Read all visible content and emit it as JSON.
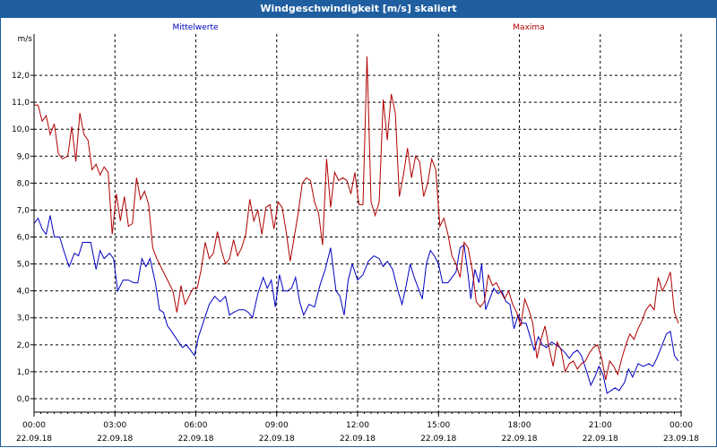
{
  "window": {
    "title": "Windgeschwindigkeit [m/s] skaliert"
  },
  "chart_data": {
    "type": "line",
    "title": "Windgeschwindigkeit [m/s] skaliert",
    "ylabel": "m/s",
    "xlabel": "",
    "ylim": [
      -0.5,
      13.2
    ],
    "xlim": [
      0,
      24
    ],
    "grid": true,
    "legend": "top",
    "yticks": [
      "0,0",
      "1,0",
      "2,0",
      "3,0",
      "4,0",
      "5,0",
      "6,0",
      "7,0",
      "8,0",
      "9,0",
      "10,0",
      "11,0",
      "12,0"
    ],
    "xticks": [
      {
        "time": "00:00",
        "date": "22.09.18"
      },
      {
        "time": "03:00",
        "date": "22.09.18"
      },
      {
        "time": "06:00",
        "date": "22.09.18"
      },
      {
        "time": "09:00",
        "date": "22.09.18"
      },
      {
        "time": "12:00",
        "date": "22.09.18"
      },
      {
        "time": "15:00",
        "date": "22.09.18"
      },
      {
        "time": "18:00",
        "date": "22.09.18"
      },
      {
        "time": "21:00",
        "date": "22.09.18"
      },
      {
        "time": "00:00",
        "date": "23.09.18"
      }
    ],
    "series": [
      {
        "name": "Mittelwerte",
        "color": "#0000c0",
        "points": [
          [
            0.0,
            6.5
          ],
          [
            0.15,
            6.7
          ],
          [
            0.3,
            6.3
          ],
          [
            0.45,
            6.1
          ],
          [
            0.6,
            6.8
          ],
          [
            0.75,
            6.0
          ],
          [
            0.95,
            6.0
          ],
          [
            1.1,
            5.5
          ],
          [
            1.3,
            4.9
          ],
          [
            1.5,
            5.4
          ],
          [
            1.65,
            5.3
          ],
          [
            1.8,
            5.8
          ],
          [
            2.1,
            5.8
          ],
          [
            2.3,
            4.8
          ],
          [
            2.45,
            5.5
          ],
          [
            2.6,
            5.2
          ],
          [
            2.8,
            5.4
          ],
          [
            2.95,
            5.2
          ],
          [
            3.1,
            4.0
          ],
          [
            3.3,
            4.4
          ],
          [
            3.5,
            4.4
          ],
          [
            3.7,
            4.3
          ],
          [
            3.85,
            4.3
          ],
          [
            4.0,
            5.2
          ],
          [
            4.15,
            4.9
          ],
          [
            4.3,
            5.2
          ],
          [
            4.5,
            4.3
          ],
          [
            4.65,
            3.3
          ],
          [
            4.8,
            3.2
          ],
          [
            4.95,
            2.7
          ],
          [
            5.1,
            2.5
          ],
          [
            5.3,
            2.2
          ],
          [
            5.5,
            1.9
          ],
          [
            5.65,
            2.0
          ],
          [
            5.8,
            1.8
          ],
          [
            5.95,
            1.6
          ],
          [
            6.1,
            2.3
          ],
          [
            6.3,
            2.9
          ],
          [
            6.5,
            3.5
          ],
          [
            6.7,
            3.8
          ],
          [
            6.9,
            3.6
          ],
          [
            7.1,
            3.8
          ],
          [
            7.25,
            3.1
          ],
          [
            7.4,
            3.2
          ],
          [
            7.6,
            3.3
          ],
          [
            7.8,
            3.3
          ],
          [
            7.95,
            3.2
          ],
          [
            8.1,
            3.0
          ],
          [
            8.3,
            3.9
          ],
          [
            8.5,
            4.5
          ],
          [
            8.65,
            4.1
          ],
          [
            8.8,
            4.4
          ],
          [
            8.95,
            3.4
          ],
          [
            9.1,
            4.6
          ],
          [
            9.25,
            4.0
          ],
          [
            9.4,
            4.0
          ],
          [
            9.55,
            4.1
          ],
          [
            9.7,
            4.5
          ],
          [
            9.85,
            3.6
          ],
          [
            10.0,
            3.1
          ],
          [
            10.2,
            3.5
          ],
          [
            10.4,
            3.4
          ],
          [
            10.6,
            4.2
          ],
          [
            10.8,
            4.8
          ],
          [
            11.0,
            5.6
          ],
          [
            11.2,
            4.0
          ],
          [
            11.35,
            3.8
          ],
          [
            11.5,
            3.1
          ],
          [
            11.65,
            4.4
          ],
          [
            11.8,
            5.0
          ],
          [
            12.0,
            4.4
          ],
          [
            12.2,
            4.6
          ],
          [
            12.4,
            5.1
          ],
          [
            12.6,
            5.3
          ],
          [
            12.8,
            5.2
          ],
          [
            12.95,
            4.9
          ],
          [
            13.1,
            5.1
          ],
          [
            13.3,
            4.8
          ],
          [
            13.5,
            4.0
          ],
          [
            13.65,
            3.5
          ],
          [
            13.8,
            4.2
          ],
          [
            13.95,
            5.0
          ],
          [
            14.1,
            4.5
          ],
          [
            14.25,
            4.1
          ],
          [
            14.4,
            3.7
          ],
          [
            14.55,
            5.0
          ],
          [
            14.7,
            5.5
          ],
          [
            14.85,
            5.3
          ],
          [
            15.0,
            5.0
          ],
          [
            15.15,
            4.3
          ],
          [
            15.35,
            4.3
          ],
          [
            15.5,
            4.5
          ],
          [
            15.65,
            4.7
          ],
          [
            15.8,
            5.6
          ],
          [
            15.95,
            5.7
          ],
          [
            16.1,
            4.6
          ],
          [
            16.2,
            3.7
          ],
          [
            16.35,
            4.8
          ],
          [
            16.5,
            4.3
          ],
          [
            16.6,
            5.0
          ],
          [
            16.75,
            3.3
          ],
          [
            16.9,
            3.7
          ],
          [
            17.05,
            4.1
          ],
          [
            17.2,
            3.9
          ],
          [
            17.35,
            4.0
          ],
          [
            17.5,
            3.6
          ],
          [
            17.65,
            3.5
          ],
          [
            17.8,
            2.6
          ],
          [
            17.95,
            3.1
          ],
          [
            18.1,
            2.8
          ],
          [
            18.25,
            2.8
          ],
          [
            18.4,
            2.3
          ],
          [
            18.55,
            1.8
          ],
          [
            18.7,
            2.3
          ],
          [
            18.85,
            2.0
          ],
          [
            19.0,
            1.9
          ],
          [
            19.2,
            2.1
          ],
          [
            19.35,
            2.0
          ],
          [
            19.5,
            1.9
          ],
          [
            19.7,
            1.7
          ],
          [
            19.85,
            1.5
          ],
          [
            20.0,
            1.7
          ],
          [
            20.15,
            1.8
          ],
          [
            20.3,
            1.6
          ],
          [
            20.5,
            1.0
          ],
          [
            20.65,
            0.5
          ],
          [
            20.8,
            0.8
          ],
          [
            20.95,
            1.2
          ],
          [
            21.1,
            0.9
          ],
          [
            21.25,
            0.2
          ],
          [
            21.4,
            0.3
          ],
          [
            21.55,
            0.4
          ],
          [
            21.7,
            0.3
          ],
          [
            21.9,
            0.6
          ],
          [
            22.05,
            1.1
          ],
          [
            22.2,
            0.8
          ],
          [
            22.4,
            1.3
          ],
          [
            22.6,
            1.2
          ],
          [
            22.8,
            1.3
          ],
          [
            22.95,
            1.2
          ],
          [
            23.1,
            1.5
          ],
          [
            23.3,
            2.0
          ],
          [
            23.45,
            2.4
          ],
          [
            23.6,
            2.5
          ],
          [
            23.75,
            1.6
          ],
          [
            23.9,
            1.4
          ]
        ]
      },
      {
        "name": "Maxima",
        "color": "#b00000",
        "points": [
          [
            0.0,
            10.9
          ],
          [
            0.15,
            10.9
          ],
          [
            0.3,
            10.3
          ],
          [
            0.45,
            10.5
          ],
          [
            0.6,
            9.8
          ],
          [
            0.75,
            10.2
          ],
          [
            0.9,
            9.1
          ],
          [
            1.05,
            8.9
          ],
          [
            1.25,
            9.0
          ],
          [
            1.4,
            10.1
          ],
          [
            1.55,
            8.8
          ],
          [
            1.7,
            10.6
          ],
          [
            1.85,
            9.8
          ],
          [
            2.0,
            9.6
          ],
          [
            2.15,
            8.5
          ],
          [
            2.3,
            8.7
          ],
          [
            2.45,
            8.3
          ],
          [
            2.6,
            8.6
          ],
          [
            2.75,
            8.4
          ],
          [
            2.9,
            6.1
          ],
          [
            3.05,
            7.6
          ],
          [
            3.2,
            6.6
          ],
          [
            3.35,
            7.5
          ],
          [
            3.5,
            6.4
          ],
          [
            3.65,
            6.5
          ],
          [
            3.8,
            8.2
          ],
          [
            3.95,
            7.4
          ],
          [
            4.1,
            7.7
          ],
          [
            4.25,
            7.2
          ],
          [
            4.4,
            5.6
          ],
          [
            4.55,
            5.2
          ],
          [
            4.7,
            4.9
          ],
          [
            4.85,
            4.6
          ],
          [
            5.0,
            4.3
          ],
          [
            5.15,
            4.0
          ],
          [
            5.3,
            3.2
          ],
          [
            5.45,
            4.2
          ],
          [
            5.6,
            3.5
          ],
          [
            5.75,
            3.8
          ],
          [
            5.9,
            4.1
          ],
          [
            6.05,
            4.1
          ],
          [
            6.2,
            4.8
          ],
          [
            6.35,
            5.8
          ],
          [
            6.5,
            5.2
          ],
          [
            6.65,
            5.4
          ],
          [
            6.8,
            6.2
          ],
          [
            6.95,
            5.5
          ],
          [
            7.1,
            5.0
          ],
          [
            7.25,
            5.2
          ],
          [
            7.4,
            5.9
          ],
          [
            7.55,
            5.3
          ],
          [
            7.7,
            5.6
          ],
          [
            7.85,
            6.1
          ],
          [
            8.0,
            7.4
          ],
          [
            8.15,
            6.6
          ],
          [
            8.3,
            7.0
          ],
          [
            8.45,
            6.1
          ],
          [
            8.6,
            7.1
          ],
          [
            8.75,
            7.2
          ],
          [
            8.9,
            6.3
          ],
          [
            9.05,
            7.3
          ],
          [
            9.2,
            7.1
          ],
          [
            9.35,
            6.2
          ],
          [
            9.5,
            5.1
          ],
          [
            9.65,
            6.0
          ],
          [
            9.8,
            6.9
          ],
          [
            9.95,
            8.0
          ],
          [
            10.1,
            8.2
          ],
          [
            10.25,
            8.1
          ],
          [
            10.4,
            7.3
          ],
          [
            10.55,
            6.9
          ],
          [
            10.7,
            5.7
          ],
          [
            10.85,
            8.9
          ],
          [
            11.0,
            7.1
          ],
          [
            11.15,
            8.4
          ],
          [
            11.3,
            8.1
          ],
          [
            11.45,
            8.2
          ],
          [
            11.6,
            8.1
          ],
          [
            11.75,
            7.6
          ],
          [
            11.9,
            8.4
          ],
          [
            12.05,
            7.2
          ],
          [
            12.2,
            7.2
          ],
          [
            12.35,
            12.7
          ],
          [
            12.5,
            7.3
          ],
          [
            12.65,
            6.8
          ],
          [
            12.8,
            7.3
          ],
          [
            12.95,
            11.1
          ],
          [
            13.1,
            9.6
          ],
          [
            13.25,
            11.3
          ],
          [
            13.4,
            10.6
          ],
          [
            13.55,
            7.5
          ],
          [
            13.7,
            8.3
          ],
          [
            13.85,
            9.3
          ],
          [
            14.0,
            8.2
          ],
          [
            14.15,
            9.0
          ],
          [
            14.3,
            8.8
          ],
          [
            14.45,
            7.5
          ],
          [
            14.6,
            8.0
          ],
          [
            14.75,
            8.9
          ],
          [
            14.9,
            8.5
          ],
          [
            15.05,
            6.4
          ],
          [
            15.2,
            6.7
          ],
          [
            15.35,
            6.1
          ],
          [
            15.5,
            5.3
          ],
          [
            15.65,
            5.0
          ],
          [
            15.8,
            4.5
          ],
          [
            15.95,
            5.8
          ],
          [
            16.1,
            5.6
          ],
          [
            16.25,
            4.8
          ],
          [
            16.4,
            3.6
          ],
          [
            16.55,
            3.4
          ],
          [
            16.7,
            3.6
          ],
          [
            16.85,
            4.6
          ],
          [
            17.0,
            4.2
          ],
          [
            17.15,
            4.3
          ],
          [
            17.3,
            4.0
          ],
          [
            17.45,
            3.7
          ],
          [
            17.6,
            4.0
          ],
          [
            17.75,
            3.5
          ],
          [
            17.9,
            3.2
          ],
          [
            18.05,
            2.7
          ],
          [
            18.2,
            3.7
          ],
          [
            18.35,
            3.3
          ],
          [
            18.5,
            2.8
          ],
          [
            18.65,
            1.5
          ],
          [
            18.8,
            2.2
          ],
          [
            18.95,
            2.7
          ],
          [
            19.1,
            1.9
          ],
          [
            19.25,
            1.2
          ],
          [
            19.4,
            2.1
          ],
          [
            19.55,
            1.8
          ],
          [
            19.7,
            1.0
          ],
          [
            19.85,
            1.3
          ],
          [
            20.0,
            1.4
          ],
          [
            20.15,
            1.1
          ],
          [
            20.3,
            1.3
          ],
          [
            20.45,
            1.4
          ],
          [
            20.6,
            1.7
          ],
          [
            20.75,
            1.9
          ],
          [
            20.9,
            2.0
          ],
          [
            21.05,
            1.5
          ],
          [
            21.2,
            0.7
          ],
          [
            21.35,
            1.4
          ],
          [
            21.5,
            1.2
          ],
          [
            21.65,
            0.9
          ],
          [
            21.8,
            1.5
          ],
          [
            21.95,
            2.0
          ],
          [
            22.1,
            2.4
          ],
          [
            22.25,
            2.2
          ],
          [
            22.4,
            2.6
          ],
          [
            22.55,
            2.9
          ],
          [
            22.7,
            3.3
          ],
          [
            22.85,
            3.5
          ],
          [
            23.0,
            3.3
          ],
          [
            23.15,
            4.5
          ],
          [
            23.3,
            4.0
          ],
          [
            23.45,
            4.3
          ],
          [
            23.6,
            4.7
          ],
          [
            23.75,
            3.2
          ],
          [
            23.9,
            2.8
          ]
        ]
      }
    ]
  }
}
